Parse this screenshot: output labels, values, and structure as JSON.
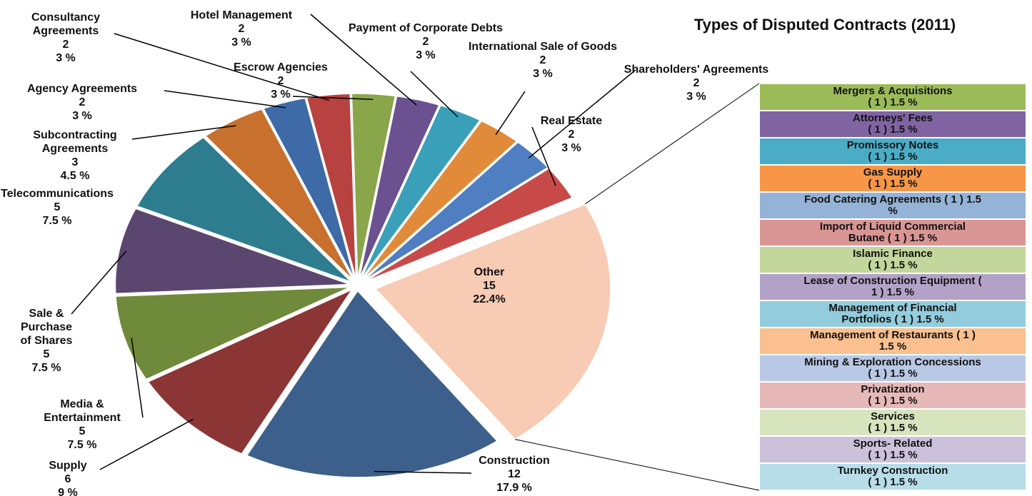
{
  "chart_data": {
    "type": "pie",
    "title": "Types of Disputed Contracts (2011)",
    "categories": [
      "Other",
      "Construction",
      "Supply",
      "Media & Entertainment",
      "Sale & Purchase of Shares",
      "Telecommunications",
      "Subcontracting Agreements",
      "Agency Agreements",
      "Consultancy Agreements",
      "Escrow Agencies",
      "Hotel Management",
      "Payment of Corporate Debts",
      "International Sale of Goods",
      "Shareholders' Agreements",
      "Real Estate"
    ],
    "values": [
      15,
      12,
      6,
      5,
      5,
      5,
      3,
      2,
      2,
      2,
      2,
      2,
      2,
      2,
      2
    ],
    "percent_labels": [
      "22.4%",
      "17.9 %",
      "9 %",
      "7.5 %",
      "7.5 %",
      "7.5 %",
      "4.5 %",
      "3 %",
      "3 %",
      "3 %",
      "3 %",
      "3 %",
      "3 %",
      "3 %",
      "3 %"
    ],
    "colors": [
      "#f8cbb4",
      "#3c5f8b",
      "#8b3535",
      "#6f8a3a",
      "#5b4670",
      "#2e7d8f",
      "#c8702e",
      "#3e6aa8",
      "#b84240",
      "#8aa64b",
      "#6b5190",
      "#3a9fb8",
      "#e18b3a",
      "#4f7ec2",
      "#c84a48"
    ],
    "breakdown": {
      "categories": [
        "Mergers & Acquisitions",
        "Attorneys' Fees",
        "Promissory Notes",
        "Gas Supply",
        "Food Catering Agreements",
        "Import of Liquid Commercial Butane",
        "Islamic Finance",
        "Lease of Construction Equipment",
        "Management of Financial Portfolios",
        "Management of Restaurants",
        "Mining & Exploration Concessions",
        "Privatization",
        "Services",
        "Sports- Related",
        "Turnkey Construction"
      ],
      "values": [
        1,
        1,
        1,
        1,
        1,
        1,
        1,
        1,
        1,
        1,
        1,
        1,
        1,
        1,
        1
      ],
      "value_labels": [
        "( 1 )",
        "( 1 )",
        "( 1 )",
        "( 1 )",
        "( 1 )",
        "( 1 )",
        "( 1 )",
        "( 1 )",
        "( 1 )",
        "( 1 )",
        "( 1 )",
        "( 1 )",
        "( 1 )",
        "( 1 )",
        "( 1 )"
      ],
      "percent_labels": [
        "1.5 %",
        "1.5 %",
        "1.5 %",
        "1.5 %",
        "1.5 %",
        "1.5 %",
        "1.5 %",
        "1.5 %",
        "1.5 %",
        "1.5 %",
        "1.5 %",
        "1.5 %",
        "1.5 %",
        "1.5 %",
        "1.5 %"
      ],
      "colors": [
        "#9bbb59",
        "#8064a2",
        "#4bacc6",
        "#f79646",
        "#95b3d7",
        "#d99694",
        "#c3d69b",
        "#b3a2c7",
        "#93cddd",
        "#fac090",
        "#b9c9e5",
        "#e6b9b8",
        "#d7e4bd",
        "#ccc1da",
        "#b7dde8"
      ]
    }
  }
}
